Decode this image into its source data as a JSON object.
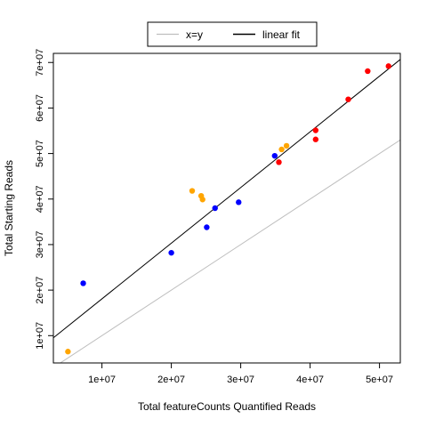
{
  "chart_data": {
    "type": "scatter",
    "title": "",
    "xlabel": "Total featureCounts Quantified Reads",
    "ylabel": "Total Starting Reads",
    "xlim": [
      3000000,
      53000000
    ],
    "ylim": [
      4000000,
      72000000
    ],
    "x_ticks": [
      10000000,
      20000000,
      30000000,
      40000000,
      50000000
    ],
    "x_tick_labels": [
      "1e+07",
      "2e+07",
      "3e+07",
      "4e+07",
      "5e+07"
    ],
    "y_ticks": [
      10000000,
      20000000,
      30000000,
      40000000,
      50000000,
      60000000,
      70000000
    ],
    "y_tick_labels": [
      "1e+07",
      "2e+07",
      "3e+07",
      "4e+07",
      "5e+07",
      "6e+07",
      "7e+07"
    ],
    "grid": false,
    "legend": {
      "placement": "top-center",
      "items": [
        {
          "label": "x=y",
          "color": "#bebebe"
        },
        {
          "label": "linear fit",
          "color": "#000000"
        }
      ]
    },
    "lines": [
      {
        "label": "x=y",
        "color": "#bebebe",
        "slope": 1,
        "intercept": 0
      },
      {
        "label": "linear fit",
        "color": "#000000",
        "slope": 1.223,
        "intercept": 5850000
      }
    ],
    "points": [
      {
        "x": 7300000,
        "y": 21500000,
        "color": "#0000ff"
      },
      {
        "x": 20000000,
        "y": 28200000,
        "color": "#0000ff"
      },
      {
        "x": 25100000,
        "y": 33800000,
        "color": "#0000ff"
      },
      {
        "x": 26300000,
        "y": 38000000,
        "color": "#0000ff"
      },
      {
        "x": 29700000,
        "y": 39300000,
        "color": "#0000ff"
      },
      {
        "x": 34900000,
        "y": 49500000,
        "color": "#0000ff"
      },
      {
        "x": 5100000,
        "y": 6500000,
        "color": "#ffa500"
      },
      {
        "x": 23000000,
        "y": 41800000,
        "color": "#ffa500"
      },
      {
        "x": 24300000,
        "y": 40700000,
        "color": "#ffa500"
      },
      {
        "x": 24500000,
        "y": 39900000,
        "color": "#ffa500"
      },
      {
        "x": 35900000,
        "y": 50900000,
        "color": "#ffa500"
      },
      {
        "x": 36600000,
        "y": 51700000,
        "color": "#ffa500"
      },
      {
        "x": 35500000,
        "y": 48100000,
        "color": "#ff0000"
      },
      {
        "x": 40800000,
        "y": 53100000,
        "color": "#ff0000"
      },
      {
        "x": 40800000,
        "y": 55100000,
        "color": "#ff0000"
      },
      {
        "x": 45500000,
        "y": 61900000,
        "color": "#ff0000"
      },
      {
        "x": 48300000,
        "y": 68100000,
        "color": "#ff0000"
      },
      {
        "x": 51300000,
        "y": 69200000,
        "color": "#ff0000"
      }
    ]
  }
}
